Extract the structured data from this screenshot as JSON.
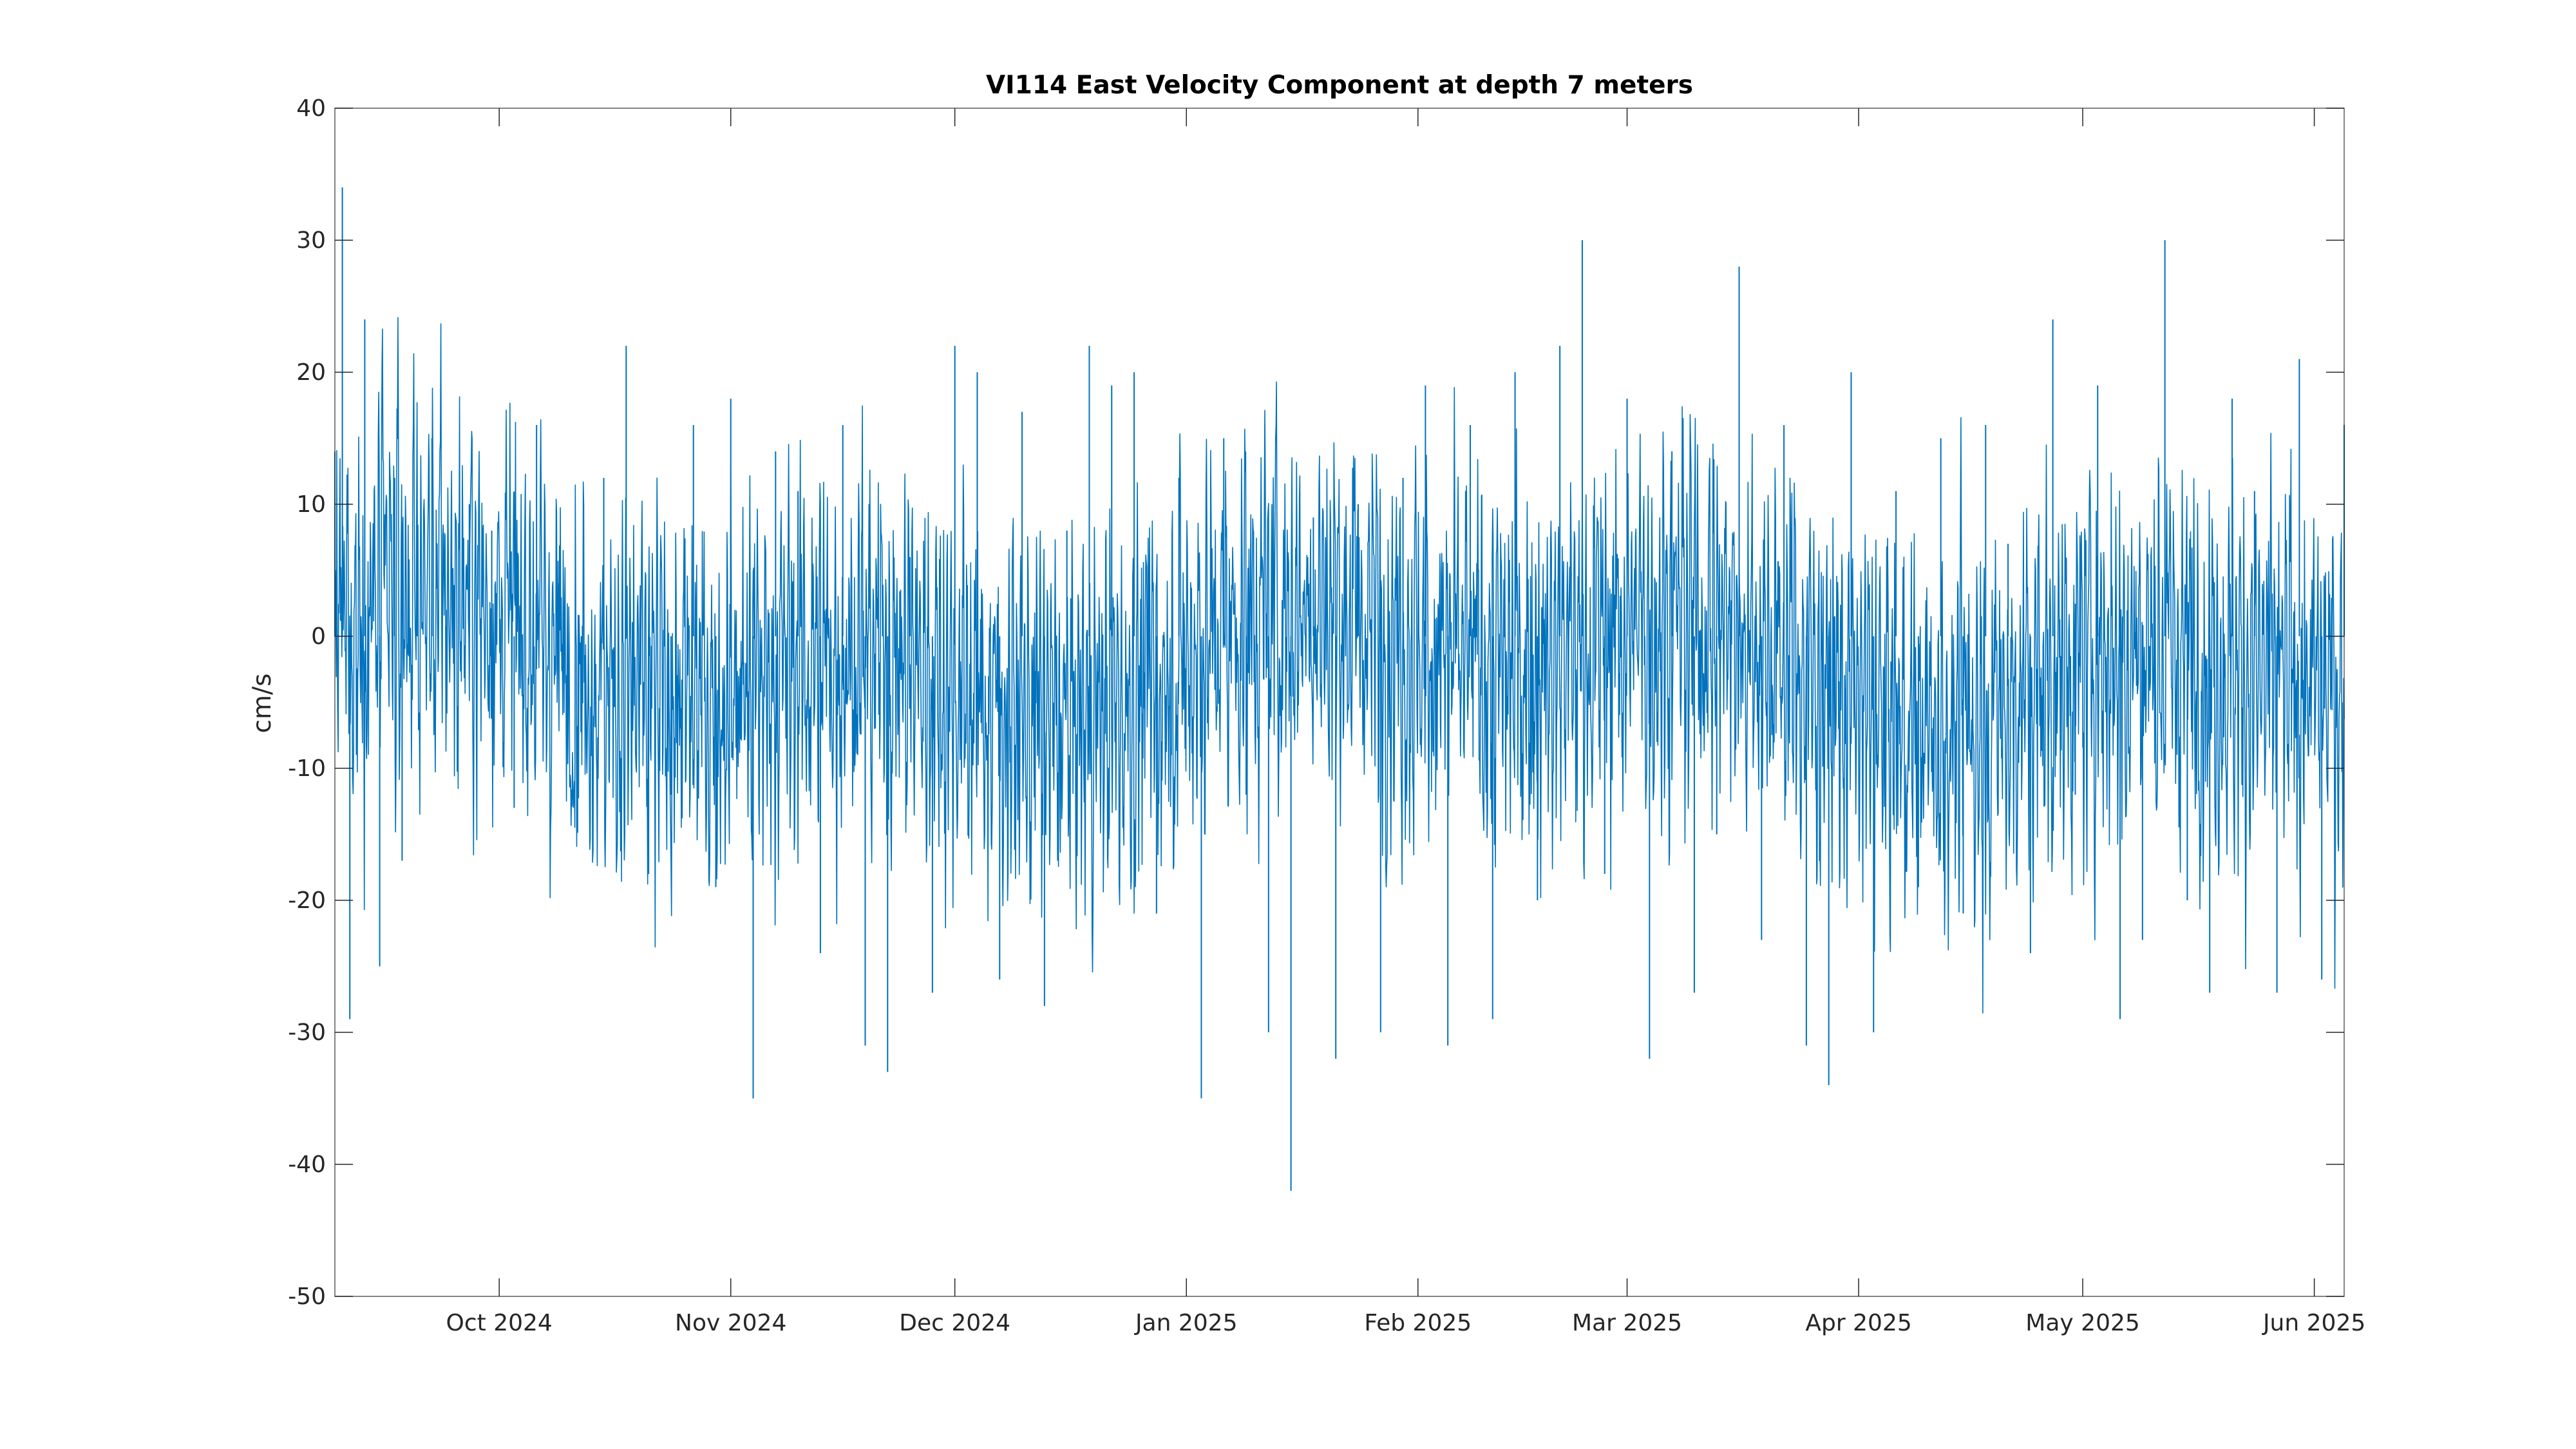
{
  "chart_data": {
    "type": "line",
    "title": "VI114 East Velocity Component at depth 7 meters",
    "xlabel": "",
    "ylabel": "cm/s",
    "xlim": [
      "2024-09-09",
      "2025-06-05"
    ],
    "ylim": [
      -50,
      40
    ],
    "x_ticks": [
      {
        "date": "2024-10-01",
        "label": "Oct 2024"
      },
      {
        "date": "2024-11-01",
        "label": "Nov 2024"
      },
      {
        "date": "2024-12-01",
        "label": "Dec 2024"
      },
      {
        "date": "2025-01-01",
        "label": "Jan 2025"
      },
      {
        "date": "2025-02-01",
        "label": "Feb 2025"
      },
      {
        "date": "2025-03-01",
        "label": "Mar 2025"
      },
      {
        "date": "2025-04-01",
        "label": "Apr 2025"
      },
      {
        "date": "2025-05-01",
        "label": "May 2025"
      },
      {
        "date": "2025-06-01",
        "label": "Jun 2025"
      }
    ],
    "y_ticks": [
      40,
      30,
      20,
      10,
      0,
      -10,
      -20,
      -30,
      -40,
      -50
    ],
    "grid": false,
    "legend": "none",
    "series": [
      {
        "color": "#0072bd",
        "x": [
          "2024-09-09",
          "2024-09-10",
          "2024-09-11",
          "2024-09-13",
          "2024-09-15",
          "2024-09-17",
          "2024-09-18",
          "2024-09-20",
          "2024-09-22",
          "2024-09-24",
          "2024-09-27",
          "2024-09-30",
          "2024-10-03",
          "2024-10-06",
          "2024-10-09",
          "2024-10-12",
          "2024-10-15",
          "2024-10-18",
          "2024-10-21",
          "2024-10-24",
          "2024-10-27",
          "2024-10-30",
          "2024-11-01",
          "2024-11-04",
          "2024-11-07",
          "2024-11-10",
          "2024-11-13",
          "2024-11-16",
          "2024-11-19",
          "2024-11-22",
          "2024-11-25",
          "2024-11-28",
          "2024-12-01",
          "2024-12-04",
          "2024-12-07",
          "2024-12-10",
          "2024-12-13",
          "2024-12-16",
          "2024-12-19",
          "2024-12-22",
          "2024-12-25",
          "2024-12-28",
          "2024-12-31",
          "2025-01-03",
          "2025-01-06",
          "2025-01-09",
          "2025-01-12",
          "2025-01-15",
          "2025-01-18",
          "2025-01-21",
          "2025-01-24",
          "2025-01-27",
          "2025-01-30",
          "2025-02-02",
          "2025-02-05",
          "2025-02-08",
          "2025-02-11",
          "2025-02-14",
          "2025-02-17",
          "2025-02-20",
          "2025-02-23",
          "2025-02-26",
          "2025-03-01",
          "2025-03-04",
          "2025-03-07",
          "2025-03-10",
          "2025-03-13",
          "2025-03-16",
          "2025-03-19",
          "2025-03-22",
          "2025-03-25",
          "2025-03-28",
          "2025-03-31",
          "2025-04-03",
          "2025-04-06",
          "2025-04-09",
          "2025-04-12",
          "2025-04-15",
          "2025-04-18",
          "2025-04-21",
          "2025-04-24",
          "2025-04-27",
          "2025-04-30",
          "2025-05-03",
          "2025-05-06",
          "2025-05-09",
          "2025-05-12",
          "2025-05-15",
          "2025-05-18",
          "2025-05-21",
          "2025-05-24",
          "2025-05-27",
          "2025-05-30",
          "2025-06-02",
          "2025-06-05"
        ],
        "y": [
          14,
          34,
          -29,
          24,
          -25,
          12,
          -17,
          6,
          15,
          2,
          10,
          8,
          -13,
          16,
          4,
          -7,
          12,
          22,
          -18,
          -12,
          16,
          -19,
          18,
          -35,
          14,
          11,
          -24,
          16,
          -31,
          -33,
          6,
          -27,
          22,
          20,
          -26,
          17,
          -28,
          8,
          22,
          19,
          20,
          -21,
          12,
          -35,
          15,
          -12,
          -30,
          -42,
          9,
          -32,
          10,
          -30,
          12,
          19,
          -31,
          16,
          -29,
          20,
          -20,
          22,
          30,
          -18,
          18,
          -32,
          14,
          -27,
          -15,
          28,
          -23,
          16,
          -31,
          -34,
          20,
          -30,
          11,
          -19,
          15,
          -21,
          16,
          7,
          -24,
          24,
          -12,
          19,
          -29,
          -23,
          30,
          -20,
          -27,
          18,
          11,
          -27,
          21,
          -26,
          16
        ]
      }
    ]
  }
}
